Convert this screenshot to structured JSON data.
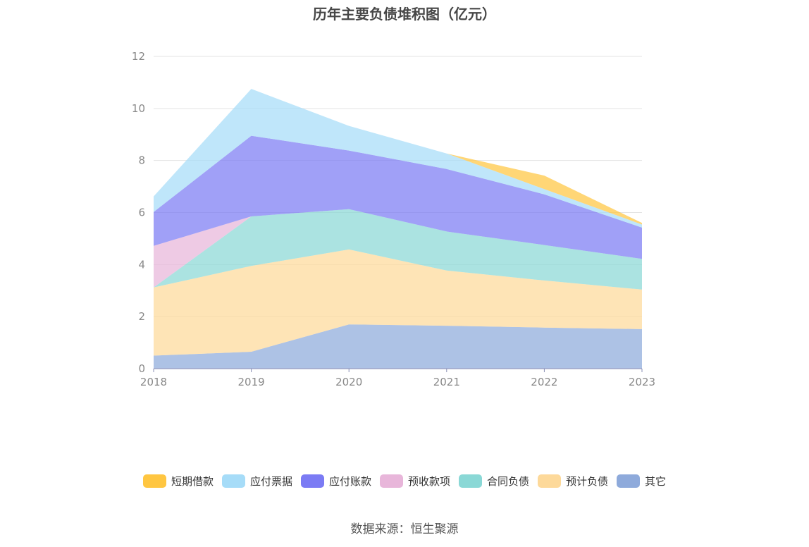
{
  "chart_data": {
    "type": "area",
    "stacked": true,
    "title": "历年主要负债堆积图（亿元）",
    "x": [
      "2018",
      "2019",
      "2020",
      "2021",
      "2022",
      "2023"
    ],
    "ylim": [
      0,
      12
    ],
    "yticks": [
      0,
      2,
      4,
      6,
      8,
      10,
      12
    ],
    "grid": true,
    "legend_position": "bottom",
    "series": [
      {
        "name": "其它",
        "color": "#8eaadb",
        "values": [
          0.5,
          0.65,
          1.7,
          1.65,
          1.58,
          1.52
        ]
      },
      {
        "name": "预计负债",
        "color": "#fdd99a",
        "values": [
          2.62,
          3.3,
          2.88,
          2.12,
          1.81,
          1.52
        ]
      },
      {
        "name": "合同负债",
        "color": "#8ad8d6",
        "values": [
          0.0,
          1.9,
          1.55,
          1.5,
          1.36,
          1.18
        ]
      },
      {
        "name": "预收款项",
        "color": "#e8b6da",
        "values": [
          1.6,
          0.0,
          0.0,
          0.0,
          0.0,
          0.0
        ]
      },
      {
        "name": "应付账款",
        "color": "#7b7bf4",
        "values": [
          1.3,
          3.1,
          2.25,
          2.4,
          1.95,
          1.2
        ]
      },
      {
        "name": "应付票据",
        "color": "#a6dcf8",
        "values": [
          0.6,
          1.8,
          0.95,
          0.6,
          0.2,
          0.12
        ]
      },
      {
        "name": "短期借款",
        "color": "#ffc641",
        "values": [
          0.0,
          0.0,
          0.0,
          0.0,
          0.52,
          0.06
        ]
      }
    ],
    "legend_order": [
      "短期借款",
      "应付票据",
      "应付账款",
      "预收款项",
      "合同负债",
      "预计负债",
      "其它"
    ]
  },
  "source": "数据来源：恒生聚源"
}
